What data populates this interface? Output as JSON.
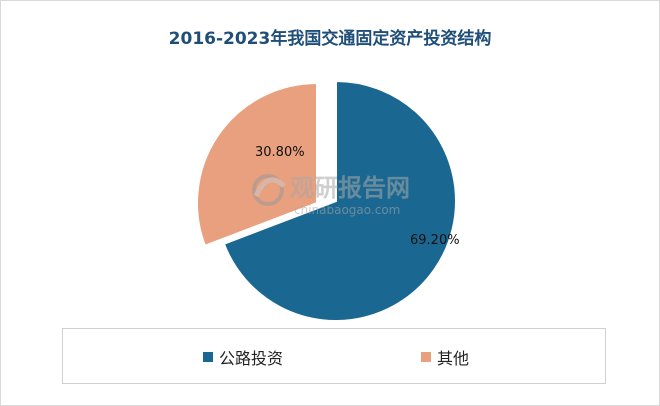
{
  "chart_data": {
    "type": "pie",
    "title": "2016-2023年我国交通固定资产投资结构",
    "slices": [
      {
        "label": "公路投资",
        "value": 69.2,
        "display": "69.20%",
        "color": "#1a6891"
      },
      {
        "label": "其他",
        "value": 30.8,
        "display": "30.80%",
        "color": "#e9a07f"
      }
    ],
    "legend_placement": "bottom"
  },
  "watermark": {
    "cn": "观研报告网",
    "en": "chinabaogao.com"
  }
}
